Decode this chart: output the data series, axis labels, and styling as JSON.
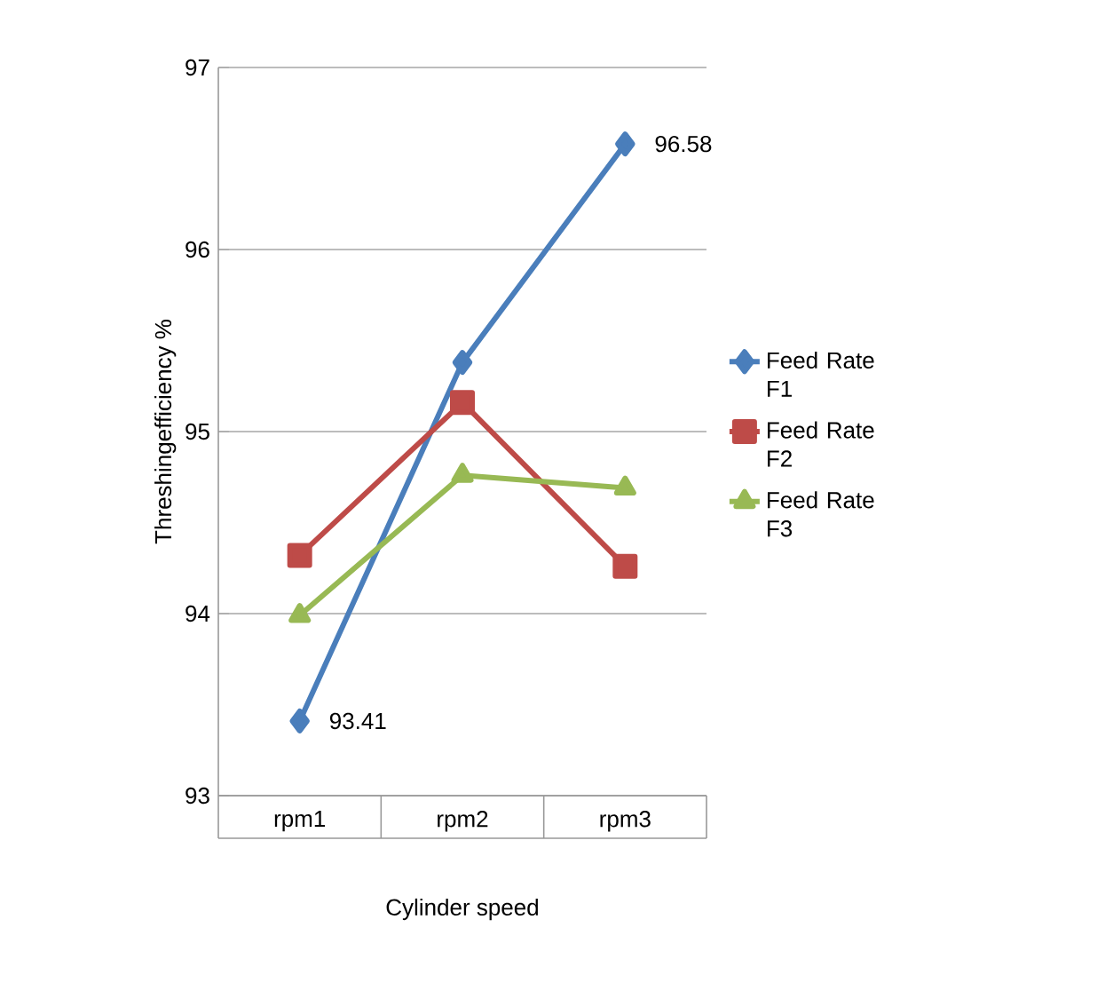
{
  "chart_data": {
    "type": "line",
    "xlabel": "Cylinder speed",
    "ylabel": "Threshingefficiency %",
    "categories": [
      "rpm1",
      "rpm2",
      "rpm3"
    ],
    "series": [
      {
        "name": "Feed Rate F1",
        "color": "#4a7ebb",
        "marker": "diamond",
        "values": [
          93.41,
          95.38,
          96.58
        ],
        "value_labels": [
          "93.41",
          null,
          "96.58"
        ]
      },
      {
        "name": "Feed Rate F2",
        "color": "#be4b48",
        "marker": "square",
        "values": [
          94.32,
          95.16,
          94.26
        ]
      },
      {
        "name": "Feed Rate F3",
        "color": "#98b954",
        "marker": "triangle",
        "values": [
          93.99,
          94.76,
          94.69
        ]
      }
    ],
    "ylim": [
      93,
      97
    ],
    "yticks": [
      93,
      94,
      95,
      96,
      97
    ],
    "grid": "y",
    "legend": "right"
  }
}
